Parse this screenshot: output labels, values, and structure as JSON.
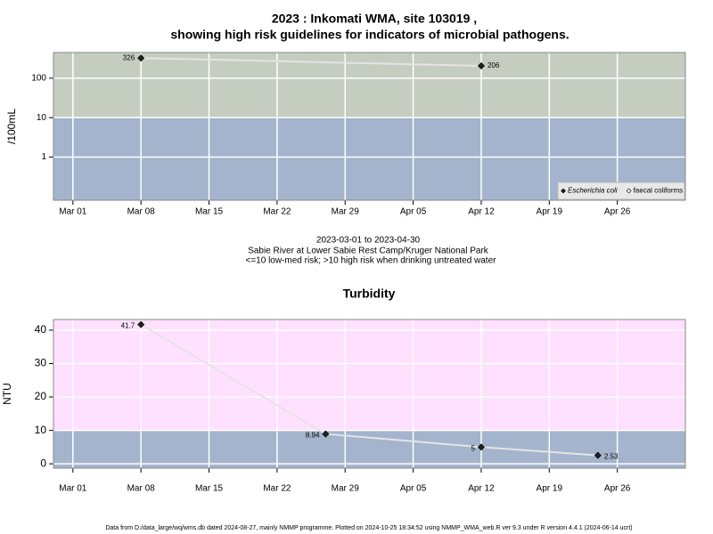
{
  "chart_data": [
    {
      "type": "line",
      "title": [
        "2023 : Inkomati WMA, site 103019 ,",
        "showing high risk guidelines for indicators of microbial pathogens."
      ],
      "annotations": [
        "2023-03-01 to 2023-04-30",
        "Sabie River at Lower Sabie Rest Camp/Kruger National Park",
        "<=10 low-med risk; >10 high risk when drinking untreated water"
      ],
      "y_label": "/100mL",
      "log_y": true,
      "x": [
        "2023-03-08",
        "2023-04-12"
      ],
      "series": [
        {
          "name": "Escherichia coli",
          "color": "#222222",
          "values": [
            326,
            206
          ]
        },
        {
          "name": "faecal coliforms",
          "color": "#ffffff",
          "values": [
            null,
            null
          ]
        }
      ],
      "xlim": [
        "2023-02-27",
        "2023-05-03"
      ],
      "xticks": [
        {
          "value": "2023-03-01",
          "label": "Mar 01"
        },
        {
          "value": "2023-03-08",
          "label": "Mar 08"
        },
        {
          "value": "2023-03-15",
          "label": "Mar 15"
        },
        {
          "value": "2023-03-22",
          "label": "Mar 22"
        },
        {
          "value": "2023-03-29",
          "label": "Mar 29"
        },
        {
          "value": "2023-04-05",
          "label": "Apr 05"
        },
        {
          "value": "2023-04-12",
          "label": "Apr 12"
        },
        {
          "value": "2023-04-19",
          "label": "Apr 19"
        },
        {
          "value": "2023-04-26",
          "label": "Apr 26"
        }
      ],
      "ylim": [
        0.08,
        450
      ],
      "yticks": [
        1,
        10,
        100
      ],
      "threshold": 10,
      "band_colors": [
        "#a3b4cc",
        "#c4cdc0"
      ],
      "grid": true,
      "legend": "lower right"
    },
    {
      "type": "line",
      "title": "Turbidity",
      "y_label": "NTU",
      "log_y": false,
      "x": [
        "2023-03-08",
        "2023-03-27",
        "2023-04-12",
        "2023-04-24"
      ],
      "series": [
        {
          "name": "Turbidity",
          "color": "#222222",
          "values": [
            41.7,
            8.94,
            5,
            2.53
          ]
        }
      ],
      "xlim": [
        "2023-02-27",
        "2023-05-03"
      ],
      "xticks": [
        {
          "value": "2023-03-01",
          "label": "Mar 01"
        },
        {
          "value": "2023-03-08",
          "label": "Mar 08"
        },
        {
          "value": "2023-03-15",
          "label": "Mar 15"
        },
        {
          "value": "2023-03-22",
          "label": "Mar 22"
        },
        {
          "value": "2023-03-29",
          "label": "Mar 29"
        },
        {
          "value": "2023-04-05",
          "label": "Apr 05"
        },
        {
          "value": "2023-04-12",
          "label": "Apr 12"
        },
        {
          "value": "2023-04-19",
          "label": "Apr 19"
        },
        {
          "value": "2023-04-26",
          "label": "Apr 26"
        }
      ],
      "ylim": [
        -1.3,
        43.2
      ],
      "yticks": [
        0,
        10,
        20,
        30,
        40
      ],
      "threshold": 10,
      "band_colors": [
        "#a3b4cc",
        "#ffe0ff"
      ],
      "grid": true,
      "data_labels": true
    }
  ],
  "footer": "Data from D:/data_large/wq/wms.db dated 2024-08-27, mainly NMMP programme. Plotted on 2024-10-25 18:34:52 using NMMP_WMA_web.R ver 9.3 under R version 4.4.1 (2024-06-14 ucrt)"
}
